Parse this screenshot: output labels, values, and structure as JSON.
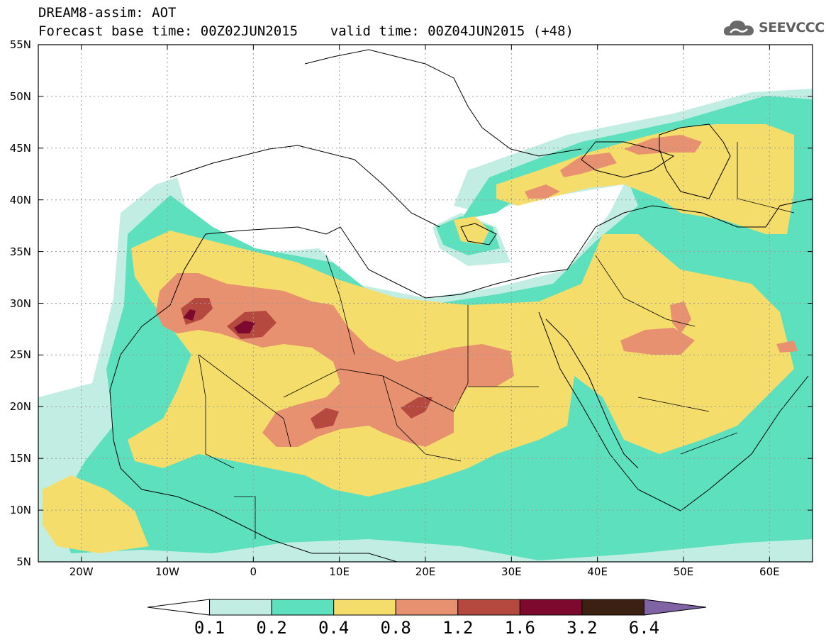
{
  "header": {
    "line1": "DREAM8-assim: AOT",
    "line2": "Forecast base time: 00Z02JUN2015    valid time: 00Z04JUN2015 (+48)"
  },
  "brand": {
    "name": "SEEVCCC",
    "icon": "cloud-logo-icon"
  },
  "map": {
    "lon_range": [
      -25,
      65
    ],
    "lat_range": [
      5,
      55
    ],
    "lat_ticks": [
      {
        "value": 55,
        "label": "55N"
      },
      {
        "value": 50,
        "label": "50N"
      },
      {
        "value": 45,
        "label": "45N"
      },
      {
        "value": 40,
        "label": "40N"
      },
      {
        "value": 35,
        "label": "35N"
      },
      {
        "value": 30,
        "label": "30N"
      },
      {
        "value": 25,
        "label": "25N"
      },
      {
        "value": 20,
        "label": "20N"
      },
      {
        "value": 15,
        "label": "15N"
      },
      {
        "value": 10,
        "label": "10N"
      },
      {
        "value": 5,
        "label": "5N"
      }
    ],
    "lon_ticks": [
      {
        "value": -20,
        "label": "20W"
      },
      {
        "value": -10,
        "label": "10W"
      },
      {
        "value": 0,
        "label": "0"
      },
      {
        "value": 10,
        "label": "10E"
      },
      {
        "value": 20,
        "label": "20E"
      },
      {
        "value": 30,
        "label": "30E"
      },
      {
        "value": 40,
        "label": "40E"
      },
      {
        "value": 50,
        "label": "50E"
      },
      {
        "value": 60,
        "label": "60E"
      }
    ],
    "colors": {
      "c01": "#c2ede3",
      "c02": "#5ce0bd",
      "c04": "#f5dd6c",
      "c08": "#e89170",
      "c12": "#b5493f",
      "c16": "#7d0a2e",
      "c32": "#3c2113",
      "c64": "#8063a4"
    }
  },
  "colorbar": {
    "labels": [
      "0.1",
      "0.2",
      "0.4",
      "0.8",
      "1.2",
      "1.6",
      "3.2",
      "6.4"
    ],
    "colors": [
      "#ffffff",
      "#c2ede3",
      "#5ce0bd",
      "#f5dd6c",
      "#e89170",
      "#b5493f",
      "#7d0a2e",
      "#3c2113",
      "#8063a4"
    ]
  }
}
